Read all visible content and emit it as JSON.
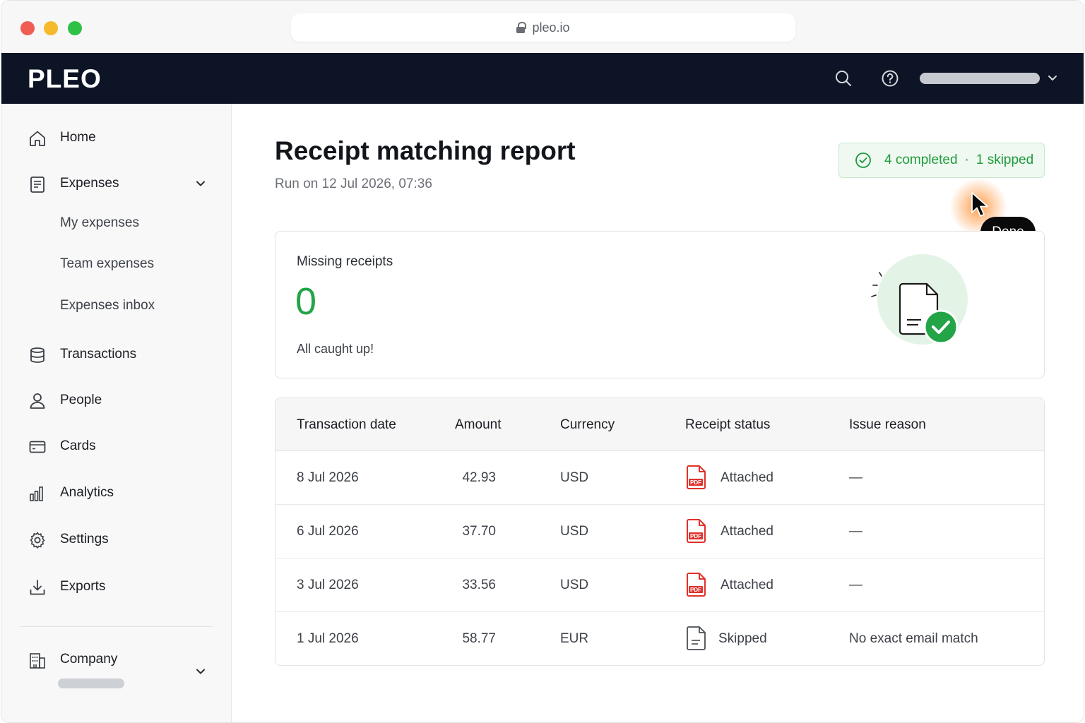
{
  "browser": {
    "url": "pleo.io"
  },
  "topnav": {
    "logo": "PLEO"
  },
  "sidebar": {
    "items": [
      {
        "label": "Home",
        "icon": "home-icon"
      },
      {
        "label": "Expenses",
        "icon": "receipt-icon"
      },
      {
        "label": "My expenses"
      },
      {
        "label": "Team expenses"
      },
      {
        "label": "Expenses inbox"
      },
      {
        "label": "Transactions",
        "icon": "database-icon"
      },
      {
        "label": "People",
        "icon": "person-icon"
      },
      {
        "label": "Cards",
        "icon": "card-icon"
      },
      {
        "label": "Analytics",
        "icon": "bar-chart-icon"
      },
      {
        "label": "Settings",
        "icon": "gear-icon"
      },
      {
        "label": "Exports",
        "icon": "download-icon"
      }
    ],
    "company": {
      "label": "Company",
      "icon": "building-icon"
    }
  },
  "main": {
    "title": "Receipt matching report",
    "run_info": "Run on 12 Jul 2026, 07:36",
    "status": {
      "completed": "4 completed",
      "separator": "·",
      "skipped": "1 skipped",
      "color": "#1f9a3c"
    },
    "tooltip": "Done",
    "summary": {
      "label": "Missing receipts",
      "value": "0",
      "caption": "All caught up!",
      "value_color": "#22a447"
    },
    "table": {
      "headers": [
        "Transaction date",
        "Amount",
        "Currency",
        "Receipt status",
        "Issue reason"
      ],
      "rows": [
        {
          "date": "8 Jul 2026",
          "amount": "42.93",
          "currency": "USD",
          "status": "Attached",
          "status_icon": "pdf-icon",
          "reason": "—"
        },
        {
          "date": "6 Jul 2026",
          "amount": "37.70",
          "currency": "USD",
          "status": "Attached",
          "status_icon": "pdf-icon",
          "reason": "—"
        },
        {
          "date": "3 Jul 2026",
          "amount": "33.56",
          "currency": "USD",
          "status": "Attached",
          "status_icon": "pdf-icon",
          "reason": "—"
        },
        {
          "date": "1 Jul 2026",
          "amount": "58.77",
          "currency": "EUR",
          "status": "Skipped",
          "status_icon": "document-icon",
          "reason": "No exact email match"
        }
      ]
    }
  },
  "colors": {
    "nav_bg": "#0c1425",
    "accent_green": "#22a447",
    "pdf_red": "#e0322b"
  }
}
